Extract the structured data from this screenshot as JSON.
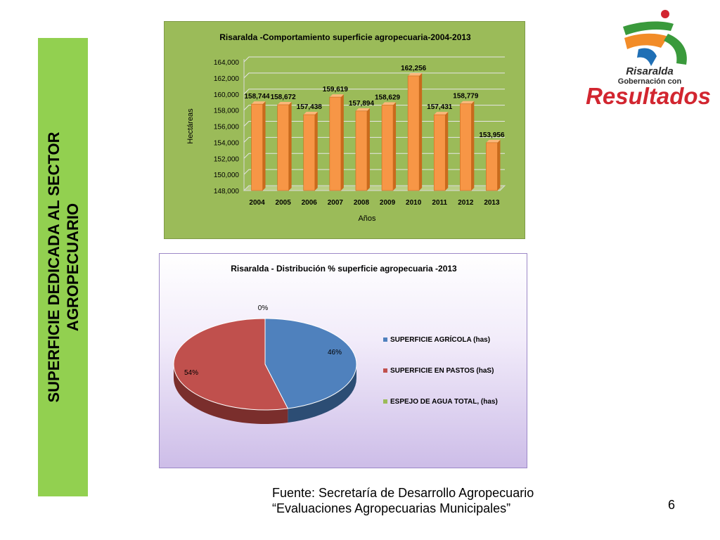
{
  "slide": {
    "side_title_line1": "SUPERFICIE  DEDICADA AL SECTOR",
    "side_title_line2": "AGROPECUARIO",
    "source_line1": "Fuente: Secretaría de Desarrollo Agropecuario",
    "source_line2": "“Evaluaciones Agropecuarias Municipales”",
    "page_number": "6",
    "logo": {
      "name": "Risaralda",
      "tagline": "Gobernación con",
      "brand": "Resultados",
      "colors": {
        "red": "#d22630",
        "green": "#3a9a3c",
        "blue": "#1f6fb5",
        "orange": "#f28c28",
        "dark": "#2b2b2b"
      }
    }
  },
  "chart_data": [
    {
      "type": "bar",
      "title": "Risaralda -Comportamiento superficie agropecuaria-2004-2013",
      "xlabel": "Años",
      "ylabel": "Hectáreas",
      "categories": [
        "2004",
        "2005",
        "2006",
        "2007",
        "2008",
        "2009",
        "2010",
        "2011",
        "2012",
        "2013"
      ],
      "values": [
        158744,
        158672,
        157438,
        159619,
        157894,
        158629,
        162256,
        157431,
        158779,
        153956
      ],
      "value_labels": [
        "158,744",
        "158,672",
        "157,438",
        "159,619",
        "157,894",
        "158,629",
        "162,256",
        "157,431",
        "158,779",
        "153,956"
      ],
      "ylim": [
        148000,
        164000
      ],
      "yticks": [
        "148,000",
        "150,000",
        "152,000",
        "154,000",
        "156,000",
        "158,000",
        "160,000",
        "162,000",
        "164,000"
      ],
      "grid": true,
      "colors": {
        "bar": "#f79646",
        "bar_dark": "#c96a1c",
        "background": "#9bbb59"
      }
    },
    {
      "type": "pie",
      "title": "Risaralda - Distribución % superficie agropecuaria -2013",
      "labels": [
        "SUPERFICIE AGRÍCOLA (has)",
        "SUPERFICIE EN PASTOS (haS)",
        "ESPEJO DE AGUA TOTAL, (has)"
      ],
      "values": [
        46,
        54,
        0
      ],
      "value_labels": [
        "46%",
        "54%",
        "0%"
      ],
      "legend_position": "right",
      "colors": [
        "#4f81bd",
        "#c0504d",
        "#9bbb59"
      ]
    }
  ]
}
